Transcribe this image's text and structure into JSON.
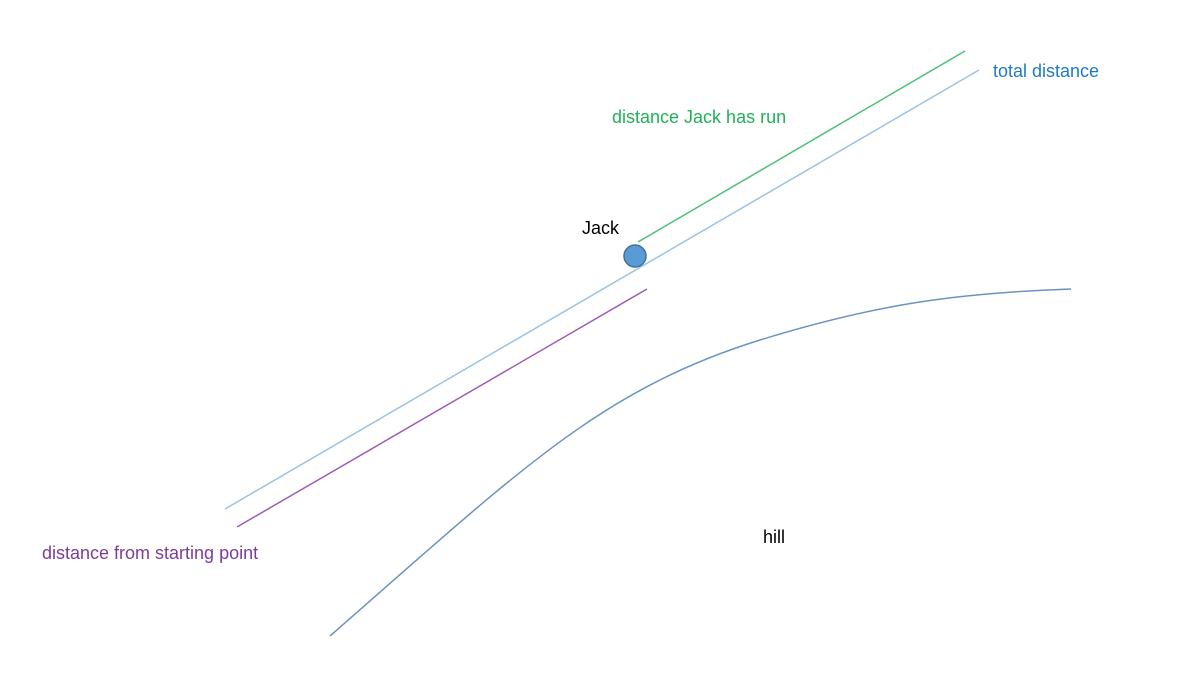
{
  "labels": {
    "total_distance": "total distance",
    "distance_run": "distance Jack has run",
    "jack": "Jack",
    "distance_from_start": "distance from starting point",
    "hill": "hill"
  },
  "colors": {
    "total_distance": "#1f7ac4",
    "distance_run": "#21b15a",
    "distance_from_start": "#7d3c98",
    "jack_text": "#000000",
    "hill_text": "#000000",
    "total_line": "#9cc3e3",
    "run_line": "#4cc07a",
    "start_line": "#a05cb5",
    "hill_curve": "#6b93c0",
    "jack_fill": "#5b9bd5",
    "jack_stroke": "#41719c"
  }
}
